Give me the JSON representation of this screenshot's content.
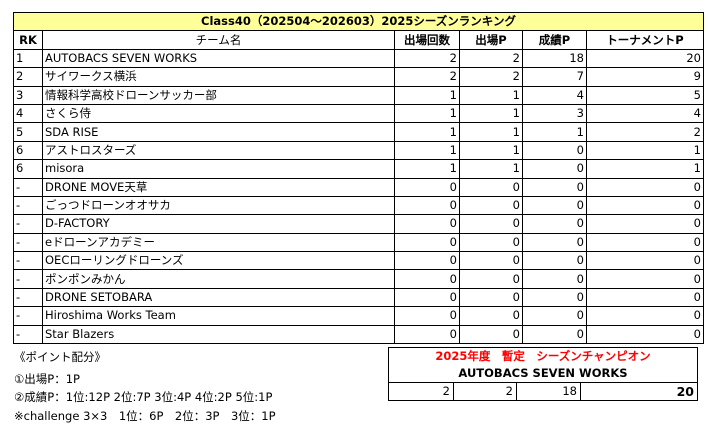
{
  "title": "Class40（202504～202603）2025シーズンランキング",
  "headers": {
    "rk": "RK",
    "name": "チーム名",
    "appearances": "出場回数",
    "appearance_points": "出場P",
    "result_points": "成績P",
    "tournament_points": "トーナメントP"
  },
  "rows": [
    {
      "rk": "1",
      "name": "AUTOBACS SEVEN WORKS",
      "appearances": "2",
      "appearance_points": "2",
      "result_points": "18",
      "tournament_points": "20"
    },
    {
      "rk": "2",
      "name": "サイワークス横浜",
      "appearances": "2",
      "appearance_points": "2",
      "result_points": "7",
      "tournament_points": "9"
    },
    {
      "rk": "3",
      "name": "情報科学高校ドローンサッカー部",
      "appearances": "1",
      "appearance_points": "1",
      "result_points": "4",
      "tournament_points": "5"
    },
    {
      "rk": "4",
      "name": "さくら侍",
      "appearances": "1",
      "appearance_points": "1",
      "result_points": "3",
      "tournament_points": "4"
    },
    {
      "rk": "5",
      "name": "SDA RISE",
      "appearances": "1",
      "appearance_points": "1",
      "result_points": "1",
      "tournament_points": "2"
    },
    {
      "rk": "6",
      "name": "アストロスターズ",
      "appearances": "1",
      "appearance_points": "1",
      "result_points": "0",
      "tournament_points": "1"
    },
    {
      "rk": "6",
      "name": "misora",
      "appearances": "1",
      "appearance_points": "1",
      "result_points": "0",
      "tournament_points": "1"
    },
    {
      "rk": "-",
      "name": "DRONE MOVE天草",
      "appearances": "0",
      "appearance_points": "0",
      "result_points": "0",
      "tournament_points": "0"
    },
    {
      "rk": "-",
      "name": "ごっつドローンオオサカ",
      "appearances": "0",
      "appearance_points": "0",
      "result_points": "0",
      "tournament_points": "0"
    },
    {
      "rk": "-",
      "name": "D-FACTORY",
      "appearances": "0",
      "appearance_points": "0",
      "result_points": "0",
      "tournament_points": "0"
    },
    {
      "rk": "-",
      "name": "eドローンアカデミー",
      "appearances": "0",
      "appearance_points": "0",
      "result_points": "0",
      "tournament_points": "0"
    },
    {
      "rk": "-",
      "name": "OECローリングドローンズ",
      "appearances": "0",
      "appearance_points": "0",
      "result_points": "0",
      "tournament_points": "0"
    },
    {
      "rk": "-",
      "name": "ポンポンみかん",
      "appearances": "0",
      "appearance_points": "0",
      "result_points": "0",
      "tournament_points": "0"
    },
    {
      "rk": "-",
      "name": "DRONE SETOBARA",
      "appearances": "0",
      "appearance_points": "0",
      "result_points": "0",
      "tournament_points": "0"
    },
    {
      "rk": "-",
      "name": "Hiroshima Works Team",
      "appearances": "0",
      "appearance_points": "0",
      "result_points": "0",
      "tournament_points": "0"
    },
    {
      "rk": "-",
      "name": "Star Blazers",
      "appearances": "0",
      "appearance_points": "0",
      "result_points": "0",
      "tournament_points": "0"
    }
  ],
  "notes": {
    "heading": "《ポイント配分》",
    "line1": "①出場P：1P",
    "line2": "②成績P：1位:12P  2位:7P  3位:4P  4位:2P  5位:1P",
    "line3": "※challenge 3×3　1位：6P　2位：3P　3位：1P"
  },
  "champion": {
    "title": "2025年度　暫定　シーズンチャンピオン",
    "team": "AUTOBACS SEVEN WORKS",
    "appearances": "2",
    "appearance_points": "2",
    "result_points": "18",
    "tournament_points": "20"
  },
  "colors": {
    "title_bg": "#ffff99",
    "champion_title": "#ff0000"
  }
}
